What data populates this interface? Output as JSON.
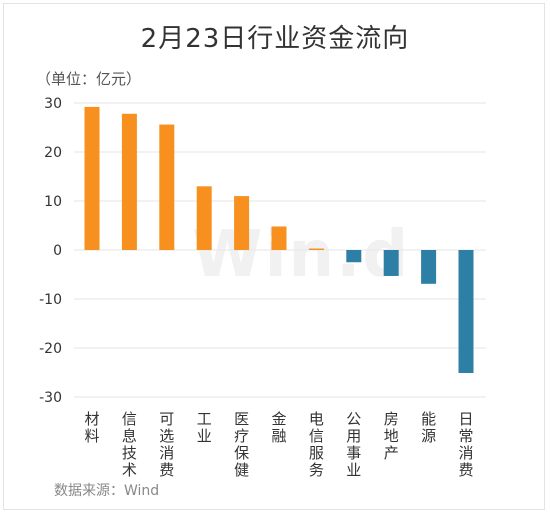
{
  "header": {
    "title": "2月23日行业资金流向",
    "unit": "（单位：亿元）"
  },
  "footer": {
    "source": "数据来源：Wind"
  },
  "watermark": "Win.d",
  "colors": {
    "positive": "#f7901e",
    "negative": "#2e7fa6",
    "grid": "#e6e6e6"
  },
  "chart_data": {
    "type": "bar",
    "categories": [
      "材料",
      "信息技术",
      "可选消费",
      "工业",
      "医疗保健",
      "金融",
      "电信服务",
      "公用事业",
      "房地产",
      "能源",
      "日常消费"
    ],
    "values": [
      29.2,
      27.8,
      25.6,
      13.0,
      11.0,
      4.8,
      0.3,
      -2.5,
      -5.3,
      -6.9,
      -25.1
    ],
    "ylim": [
      -30,
      30
    ],
    "yticks": [
      30,
      20,
      10,
      0,
      -10,
      -20,
      -30
    ],
    "grid": true,
    "legend": "none"
  }
}
